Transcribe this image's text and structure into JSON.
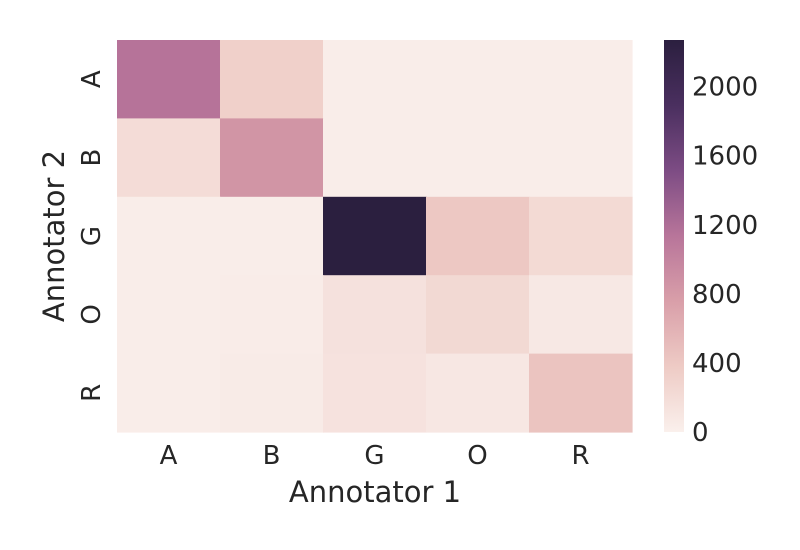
{
  "chart_data": {
    "type": "heatmap",
    "xlabel": "Annotator 1",
    "ylabel": "Annotator 2",
    "x_categories": [
      "A",
      "B",
      "G",
      "O",
      "R"
    ],
    "y_categories": [
      "A",
      "B",
      "G",
      "O",
      "R"
    ],
    "values": [
      [
        1150,
        330,
        30,
        30,
        30
      ],
      [
        200,
        850,
        30,
        30,
        30
      ],
      [
        30,
        30,
        2270,
        400,
        230
      ],
      [
        30,
        40,
        150,
        240,
        80
      ],
      [
        30,
        50,
        140,
        90,
        440
      ]
    ],
    "colorbar": {
      "min": 0,
      "max": 2270,
      "ticks": [
        0,
        400,
        800,
        1200,
        1600,
        2000
      ]
    },
    "colormap": [
      "#faf0ec",
      "#eecbc5",
      "#d99fa9",
      "#b8759a",
      "#7d4c84",
      "#4a2f5f",
      "#2b1f3f"
    ]
  }
}
